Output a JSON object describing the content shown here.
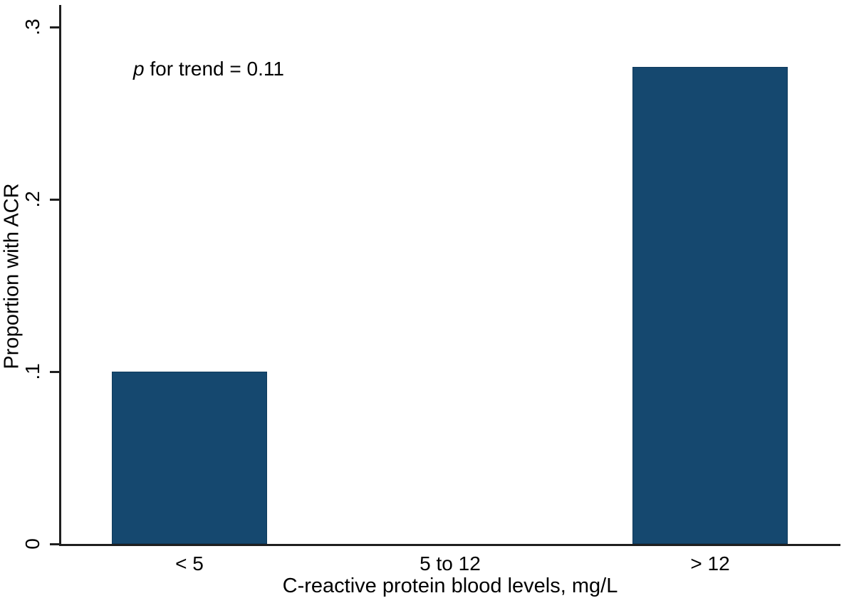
{
  "chart_data": {
    "type": "bar",
    "title": "",
    "categories": [
      "< 5",
      "5 to 12",
      "> 12"
    ],
    "values": [
      0.1,
      0,
      0.277
    ],
    "xlabel": "C-reactive protein blood levels, mg/L",
    "ylabel": "Proportion with ACR",
    "ylim": [
      0,
      0.3
    ],
    "yticks": [
      0,
      0.1,
      0.2,
      0.3
    ],
    "ytick_labels": [
      "0",
      ".1",
      ".2",
      ".3"
    ],
    "annotation": {
      "italic_part": "p",
      "rest": " for trend = 0.11"
    },
    "grid": false,
    "legend_position": "none",
    "bar_color": "#15486f",
    "bar_border_color": "#0f3a5c",
    "axis_color": "#1f1f1f",
    "background_color": "#ffffff",
    "text_color": "#000000"
  }
}
